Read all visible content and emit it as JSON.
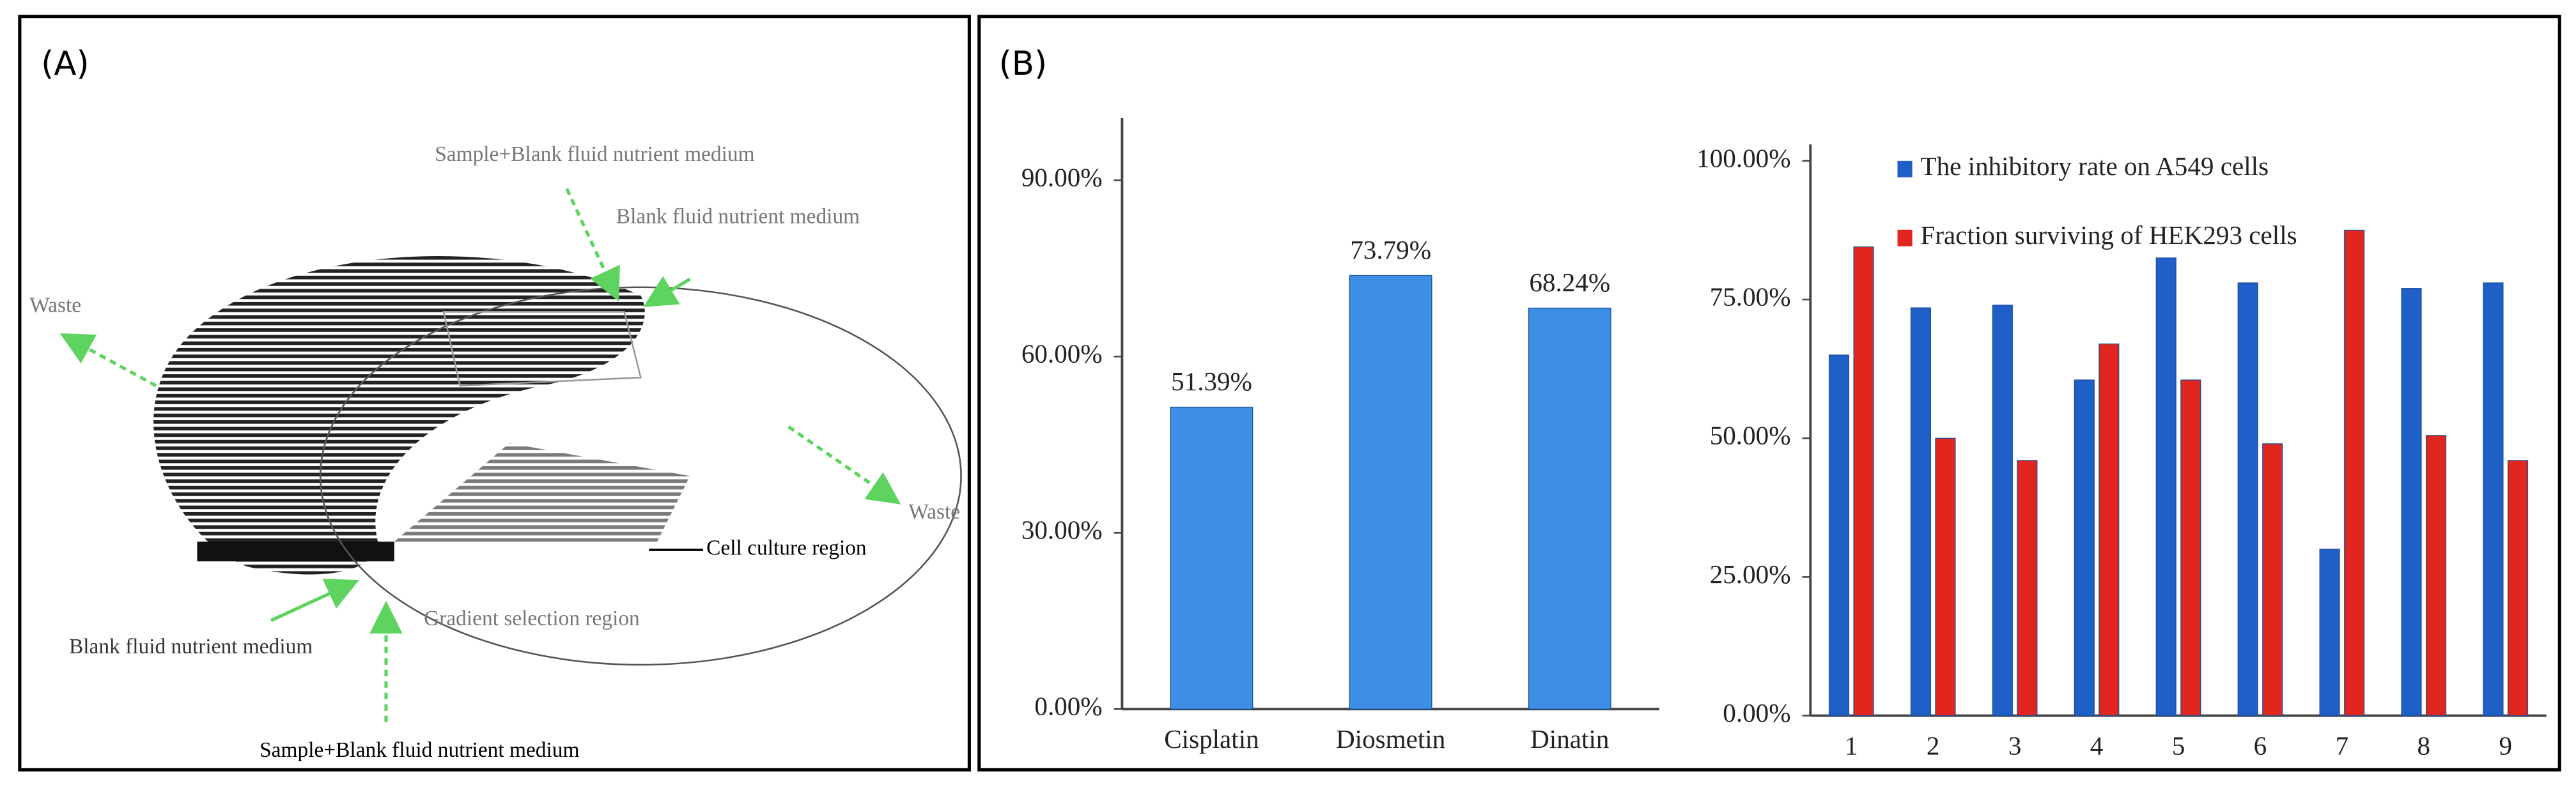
{
  "panel_a": {
    "label": "(A)",
    "labels": [
      "Sample+Blank fluid nutrient medium",
      "Blank fluid nutrient medium",
      "Waste",
      "Waste",
      "Cell culture region",
      "Gradient selection region",
      "Blank fluid nutrient medium",
      "Sample+Blank fluid nutrient medium"
    ]
  },
  "panel_b": {
    "label": "(B)"
  },
  "chart_data": [
    {
      "type": "bar",
      "categories": [
        "Cisplatin",
        "Diosmetin",
        "Dinatin"
      ],
      "values": [
        51.39,
        73.79,
        68.24
      ],
      "value_labels": [
        "51.39%",
        "73.79%",
        "68.24%"
      ],
      "color": "#3d8fe6",
      "ylim": [
        0,
        100
      ],
      "yticks": [
        {
          "value": 0,
          "label": "0.00%"
        },
        {
          "value": 30,
          "label": "30.00%"
        },
        {
          "value": 60,
          "label": "60.00%"
        },
        {
          "value": 90,
          "label": "90.00%"
        }
      ],
      "grid": false
    },
    {
      "type": "bar",
      "categories": [
        "1",
        "2",
        "3",
        "4",
        "5",
        "6",
        "7",
        "8",
        "9"
      ],
      "series": [
        {
          "name": "The inhibitory rate on A549 cells",
          "color": "#1f5fc8",
          "values": [
            65,
            73.5,
            74,
            60.5,
            82.5,
            78,
            30,
            77,
            78
          ]
        },
        {
          "name": "Fraction surviving of HEK293 cells",
          "color": "#e0261e",
          "values": [
            84.5,
            50,
            46,
            67,
            60.5,
            49,
            87.5,
            50.5,
            46
          ]
        }
      ],
      "ylim": [
        0,
        100
      ],
      "yticks": [
        {
          "value": 0,
          "label": "0.00%"
        },
        {
          "value": 25,
          "label": "25.00%"
        },
        {
          "value": 50,
          "label": "50.00%"
        },
        {
          "value": 75,
          "label": "75.00%"
        },
        {
          "value": 100,
          "label": "100.00%"
        }
      ],
      "grid": false,
      "legend": "top-left"
    }
  ]
}
